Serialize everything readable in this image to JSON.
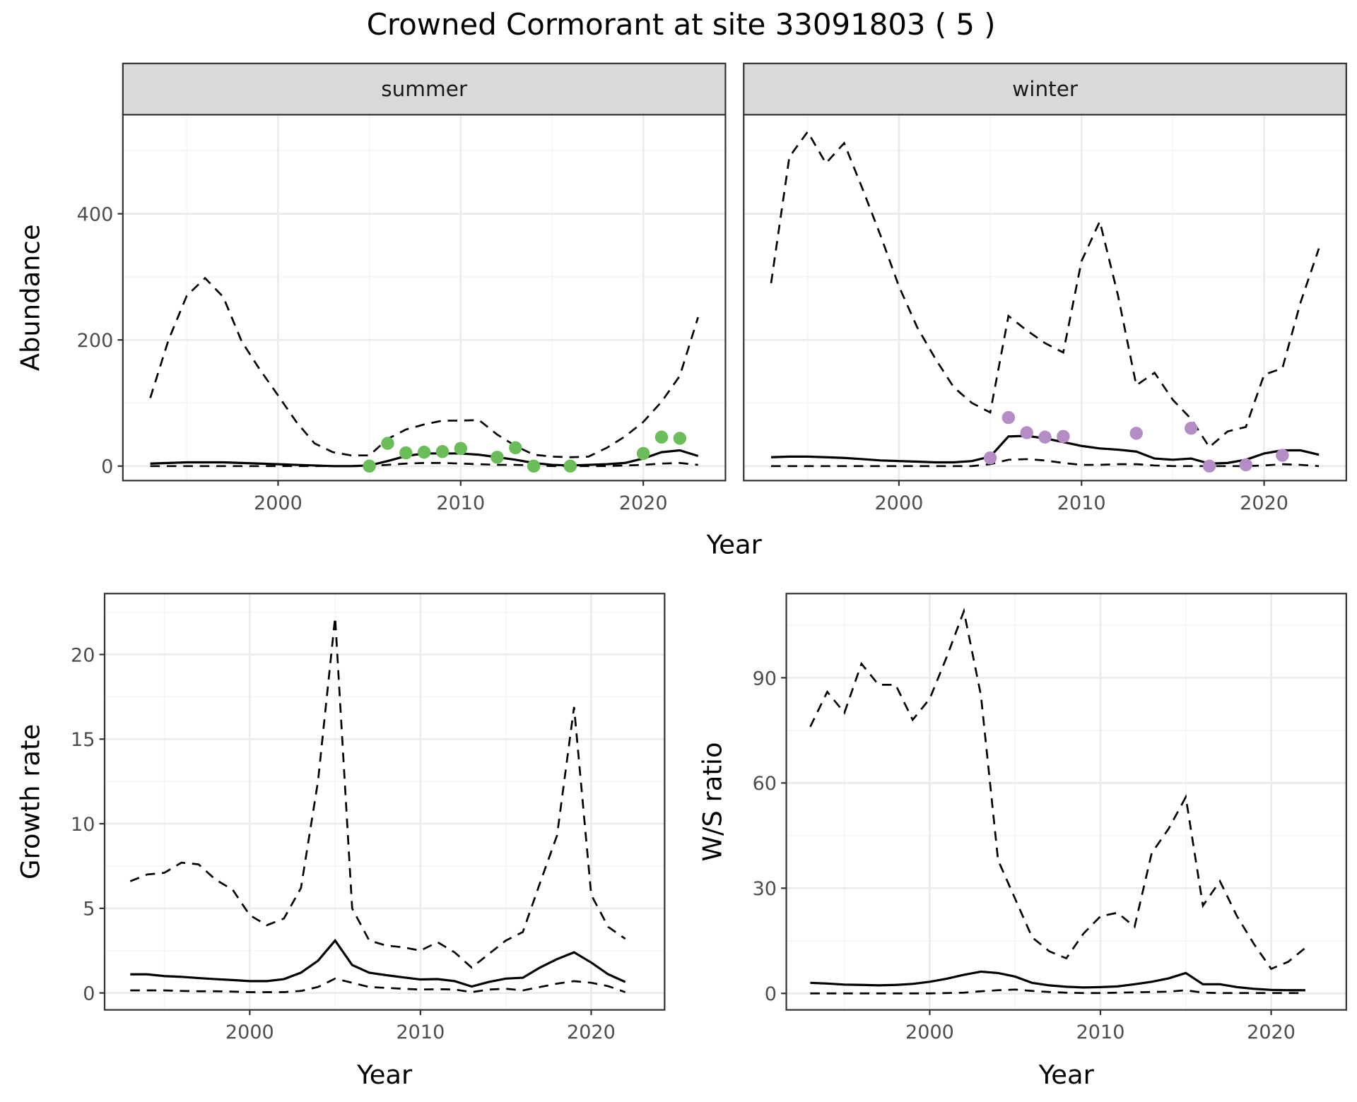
{
  "title": "Crowned Cormorant at site 33091803 ( 5 )",
  "colors": {
    "summer_points": "#6ABD58",
    "winter_points": "#B48DC6",
    "line": "#000000",
    "grid_major": "#EBEBEB",
    "grid_minor": "#F4F4F4",
    "strip_fill": "#D9D9D9"
  },
  "chart_data": [
    {
      "type": "line",
      "panel": "summer",
      "strip_label": "summer",
      "xlabel": "Year",
      "ylabel": "Abundance",
      "xlim": [
        1991.5,
        2024.5
      ],
      "ylim": [
        -23,
        557
      ],
      "xticks": [
        2000,
        2010,
        2020
      ],
      "yticks": [
        0,
        200,
        400
      ],
      "grid": true,
      "x": [
        1993,
        1994,
        1995,
        1996,
        1997,
        1998,
        1999,
        2000,
        2001,
        2002,
        2003,
        2004,
        2005,
        2006,
        2007,
        2008,
        2009,
        2010,
        2011,
        2012,
        2013,
        2014,
        2015,
        2016,
        2017,
        2018,
        2019,
        2020,
        2021,
        2022,
        2023
      ],
      "mean": [
        4,
        5,
        6,
        6,
        6,
        5,
        4,
        3,
        2,
        1,
        0,
        0,
        1,
        8,
        16,
        20,
        20,
        20,
        18,
        14,
        10,
        5,
        2,
        1,
        2,
        3,
        5,
        12,
        22,
        25,
        16
      ],
      "upper": [
        108,
        200,
        270,
        298,
        268,
        198,
        153,
        112,
        70,
        36,
        22,
        17,
        17,
        43,
        58,
        66,
        72,
        72,
        73,
        50,
        32,
        18,
        15,
        14,
        15,
        29,
        47,
        70,
        102,
        143,
        236
      ],
      "lower": [
        0,
        0,
        0,
        0,
        0,
        0,
        0,
        0,
        0,
        0,
        0,
        0,
        0,
        2,
        4,
        5,
        5,
        4,
        3,
        2,
        2,
        1,
        0,
        0,
        0,
        0,
        1,
        2,
        4,
        5,
        2
      ],
      "points": {
        "x": [
          2005,
          2006,
          2007,
          2008,
          2009,
          2010,
          2012,
          2013,
          2014,
          2016,
          2020,
          2021,
          2022
        ],
        "y": [
          0,
          36,
          21,
          22,
          23,
          28,
          14,
          29,
          0,
          0,
          20,
          46,
          44
        ]
      }
    },
    {
      "type": "line",
      "panel": "winter",
      "strip_label": "winter",
      "xlabel": "Year",
      "ylabel": "Abundance",
      "xlim": [
        1991.5,
        2024.5
      ],
      "ylim": [
        -23,
        557
      ],
      "xticks": [
        2000,
        2010,
        2020
      ],
      "yticks": [
        0,
        200,
        400
      ],
      "grid": true,
      "x": [
        1993,
        1994,
        1995,
        1996,
        1997,
        1998,
        1999,
        2000,
        2001,
        2002,
        2003,
        2004,
        2005,
        2006,
        2007,
        2008,
        2009,
        2010,
        2011,
        2012,
        2013,
        2014,
        2015,
        2016,
        2017,
        2018,
        2019,
        2020,
        2021,
        2022,
        2023
      ],
      "mean": [
        14,
        15,
        15,
        14,
        13,
        11,
        9,
        8,
        7,
        6,
        6,
        8,
        15,
        47,
        48,
        44,
        38,
        32,
        28,
        26,
        23,
        12,
        10,
        12,
        4,
        5,
        10,
        20,
        25,
        25,
        18
      ],
      "upper": [
        290,
        490,
        530,
        480,
        512,
        440,
        365,
        285,
        220,
        170,
        125,
        100,
        85,
        238,
        215,
        195,
        180,
        325,
        388,
        270,
        128,
        148,
        105,
        75,
        30,
        55,
        62,
        145,
        155,
        260,
        345
      ],
      "lower": [
        0,
        0,
        0,
        0,
        0,
        0,
        0,
        0,
        0,
        0,
        0,
        0,
        3,
        10,
        11,
        9,
        5,
        2,
        2,
        3,
        3,
        1,
        0,
        0,
        0,
        0,
        0,
        1,
        3,
        2,
        0
      ],
      "points": {
        "x": [
          2005,
          2006,
          2007,
          2008,
          2009,
          2013,
          2016,
          2017,
          2019,
          2021
        ],
        "y": [
          13,
          77,
          53,
          46,
          47,
          52,
          60,
          0,
          2,
          17
        ]
      }
    },
    {
      "type": "line",
      "panel": "growth",
      "xlabel": "Year",
      "ylabel": "Growth rate",
      "xlim": [
        1991.5,
        2024.3
      ],
      "ylim": [
        -1.0,
        23.6
      ],
      "xticks": [
        2000,
        2010,
        2020
      ],
      "yticks": [
        0,
        5,
        10,
        15,
        20
      ],
      "grid": true,
      "x": [
        1993,
        1994,
        1995,
        1996,
        1997,
        1998,
        1999,
        2000,
        2001,
        2002,
        2003,
        2004,
        2005,
        2006,
        2007,
        2008,
        2009,
        2010,
        2011,
        2012,
        2013,
        2014,
        2015,
        2016,
        2017,
        2018,
        2019,
        2020,
        2021,
        2022
      ],
      "mean": [
        1.1,
        1.1,
        1.0,
        0.95,
        0.88,
        0.82,
        0.76,
        0.7,
        0.7,
        0.82,
        1.2,
        1.9,
        3.1,
        1.65,
        1.2,
        1.05,
        0.92,
        0.8,
        0.82,
        0.7,
        0.38,
        0.65,
        0.85,
        0.9,
        1.5,
        2.0,
        2.4,
        1.8,
        1.1,
        0.65
      ],
      "upper": [
        6.6,
        7.0,
        7.1,
        7.7,
        7.6,
        6.7,
        6.1,
        4.6,
        4.0,
        4.4,
        6.2,
        12.5,
        22.2,
        5.0,
        3.1,
        2.8,
        2.7,
        2.5,
        3.0,
        2.4,
        1.5,
        2.3,
        3.1,
        3.6,
        6.5,
        9.3,
        16.9,
        5.8,
        3.9,
        3.2
      ],
      "lower": [
        0.15,
        0.15,
        0.15,
        0.12,
        0.1,
        0.1,
        0.08,
        0.05,
        0.05,
        0.05,
        0.12,
        0.35,
        0.85,
        0.6,
        0.35,
        0.3,
        0.25,
        0.2,
        0.22,
        0.2,
        0.05,
        0.2,
        0.25,
        0.15,
        0.35,
        0.55,
        0.7,
        0.6,
        0.4,
        0.05
      ]
    },
    {
      "type": "line",
      "panel": "ratio",
      "xlabel": "Year",
      "ylabel": "W/S ratio",
      "xlim": [
        1991.6,
        2024.4
      ],
      "ylim": [
        -4.7,
        114
      ],
      "xticks": [
        2000,
        2010,
        2020
      ],
      "yticks": [
        0,
        30,
        60,
        90
      ],
      "grid": true,
      "x": [
        1993,
        1994,
        1995,
        1996,
        1997,
        1998,
        1999,
        2000,
        2001,
        2002,
        2003,
        2004,
        2005,
        2006,
        2007,
        2008,
        2009,
        2010,
        2011,
        2012,
        2013,
        2014,
        2015,
        2016,
        2017,
        2018,
        2019,
        2020,
        2021,
        2022
      ],
      "mean": [
        3,
        2.8,
        2.5,
        2.4,
        2.3,
        2.4,
        2.7,
        3.3,
        4.2,
        5.3,
        6.2,
        5.8,
        4.8,
        3.0,
        2.3,
        1.9,
        1.7,
        1.8,
        2.0,
        2.6,
        3.3,
        4.3,
        5.8,
        2.6,
        2.6,
        1.8,
        1.3,
        1.0,
        0.9,
        0.9
      ],
      "upper": [
        76,
        86,
        80,
        94,
        88,
        88,
        78,
        84,
        96,
        109,
        85,
        38,
        27,
        16,
        12,
        10,
        17,
        22,
        23,
        19,
        40,
        47,
        56,
        25,
        32,
        22,
        14,
        7,
        9,
        13
      ],
      "lower": [
        0,
        0,
        0,
        0,
        0,
        0,
        0,
        0,
        0.1,
        0.2,
        0.6,
        0.9,
        1.1,
        0.7,
        0.4,
        0.2,
        0.1,
        0.1,
        0.2,
        0.3,
        0.4,
        0.5,
        0.9,
        0.2,
        0.1,
        0.1,
        0.1,
        0.1,
        0.1,
        0.1
      ]
    }
  ]
}
